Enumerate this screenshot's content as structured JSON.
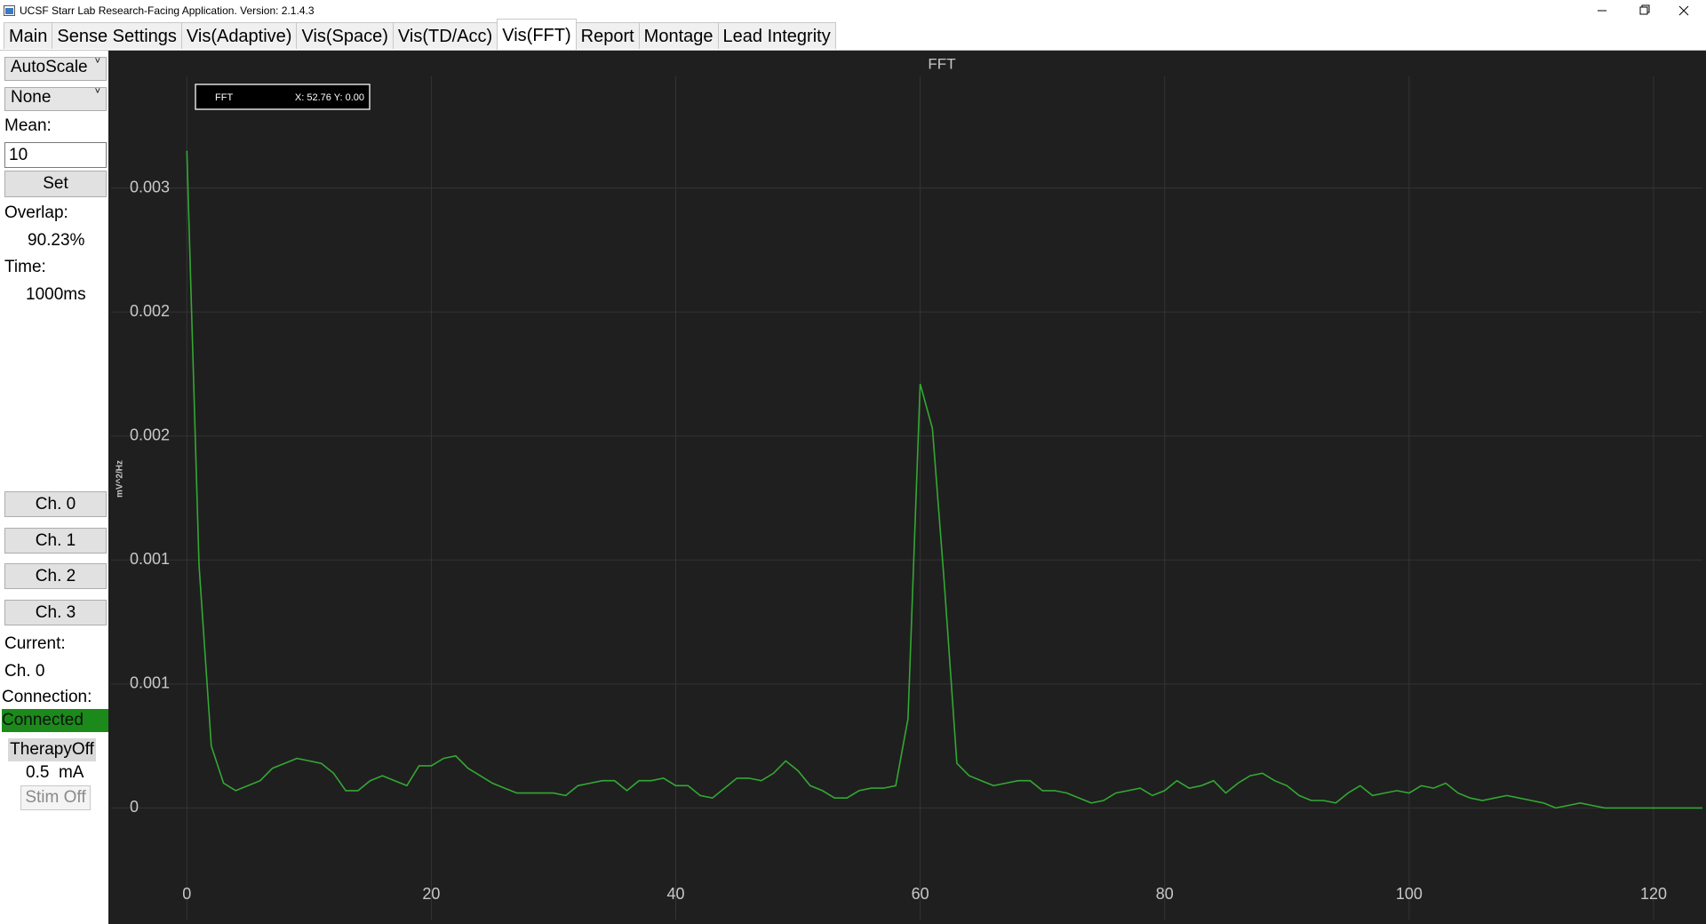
{
  "window": {
    "title": "UCSF Starr Lab Research-Facing Application. Version: 2.1.4.3"
  },
  "tabs": [
    "Main",
    "Sense Settings",
    "Vis(Adaptive)",
    "Vis(Space)",
    "Vis(TD/Acc)",
    "Vis(FFT)",
    "Report",
    "Montage",
    "Lead Integrity"
  ],
  "sidebar": {
    "scale_mode": "AutoScale",
    "filter": "None",
    "mean_label": "Mean:",
    "mean_value": "10",
    "set_button": "Set",
    "overlap_label": "Overlap:",
    "overlap_value": "90.23%",
    "time_label": "Time:",
    "time_value": "1000ms",
    "channel_buttons": [
      "Ch. 0",
      "Ch. 1",
      "Ch. 2",
      "Ch. 3"
    ],
    "current_label": "Current:",
    "current_value": "Ch. 0",
    "connection_label": "Connection:",
    "connection_value": "Connected",
    "therapy": "TherapyOff",
    "amplitude": "0.5  mA",
    "stim_button": "Stim Off"
  },
  "chart_data": {
    "type": "line",
    "title": "FFT",
    "y_label": "mV^2/Hz",
    "cursor_readout": "X: 52.76 Y: 0.00",
    "x": [
      0,
      1,
      2,
      3,
      4,
      5,
      6,
      7,
      8,
      9,
      10,
      11,
      12,
      13,
      14,
      15,
      16,
      17,
      18,
      19,
      20,
      21,
      22,
      23,
      24,
      25,
      26,
      27,
      28,
      29,
      30,
      31,
      32,
      33,
      34,
      35,
      36,
      37,
      38,
      39,
      40,
      41,
      42,
      43,
      44,
      45,
      46,
      47,
      48,
      49,
      50,
      51,
      52,
      53,
      54,
      55,
      56,
      57,
      58,
      59,
      60,
      61,
      62,
      63,
      64,
      65,
      66,
      67,
      68,
      69,
      70,
      71,
      72,
      73,
      74,
      75,
      76,
      77,
      78,
      79,
      80,
      81,
      82,
      83,
      84,
      85,
      86,
      87,
      88,
      89,
      90,
      91,
      92,
      93,
      94,
      95,
      96,
      97,
      98,
      99,
      100,
      101,
      102,
      103,
      104,
      105,
      106,
      107,
      108,
      109,
      110,
      111,
      112,
      113,
      114,
      115,
      116,
      117,
      118,
      119,
      120,
      121,
      122,
      123,
      124
    ],
    "series": [
      {
        "name": "FFT",
        "color": "#33a833",
        "values": [
          0.00265,
          0.00098,
          0.00025,
          0.0001,
          7e-05,
          9e-05,
          0.00011,
          0.00016,
          0.00018,
          0.0002,
          0.00019,
          0.00018,
          0.00014,
          7e-05,
          7e-05,
          0.00011,
          0.00013,
          0.00011,
          9e-05,
          0.00017,
          0.00017,
          0.0002,
          0.00021,
          0.00016,
          0.00013,
          0.0001,
          8e-05,
          6e-05,
          6e-05,
          6e-05,
          6e-05,
          5e-05,
          9e-05,
          0.0001,
          0.00011,
          0.00011,
          7e-05,
          0.00011,
          0.00011,
          0.00012,
          9e-05,
          9e-05,
          5e-05,
          4e-05,
          8e-05,
          0.00012,
          0.00012,
          0.00011,
          0.00014,
          0.00019,
          0.00015,
          9e-05,
          7e-05,
          4e-05,
          4e-05,
          7e-05,
          8e-05,
          8e-05,
          9e-05,
          0.00036,
          0.00171,
          0.00153,
          0.00089,
          0.00018,
          0.00013,
          0.00011,
          9e-05,
          0.0001,
          0.00011,
          0.00011,
          7e-05,
          7e-05,
          6e-05,
          4e-05,
          2e-05,
          3e-05,
          6e-05,
          7e-05,
          8e-05,
          5e-05,
          7e-05,
          0.00011,
          8e-05,
          9e-05,
          0.00011,
          6e-05,
          0.0001,
          0.00013,
          0.00014,
          0.00011,
          9e-05,
          5e-05,
          3e-05,
          3e-05,
          2e-05,
          6e-05,
          9e-05,
          5e-05,
          6e-05,
          7e-05,
          6e-05,
          9e-05,
          8e-05,
          0.0001,
          6e-05,
          4e-05,
          3e-05,
          4e-05,
          5e-05,
          4e-05,
          3e-05,
          2e-05,
          0,
          1e-05,
          2e-05,
          1e-05,
          0,
          0,
          0,
          0,
          0,
          0,
          0,
          0,
          0
        ]
      }
    ],
    "xlim": [
      -6.2,
      124
    ],
    "ylim": [
      -0.00045,
      0.00295
    ],
    "xticks": [
      0,
      20,
      40,
      60,
      80,
      100,
      120
    ],
    "yticks": [
      0,
      {
        "value": 0.0005,
        "label": "0.001"
      },
      0.001,
      {
        "value": 0.0015,
        "label": "0.002"
      },
      0.002,
      {
        "value": 0.0025,
        "label": "0.003"
      }
    ],
    "grid": true
  }
}
